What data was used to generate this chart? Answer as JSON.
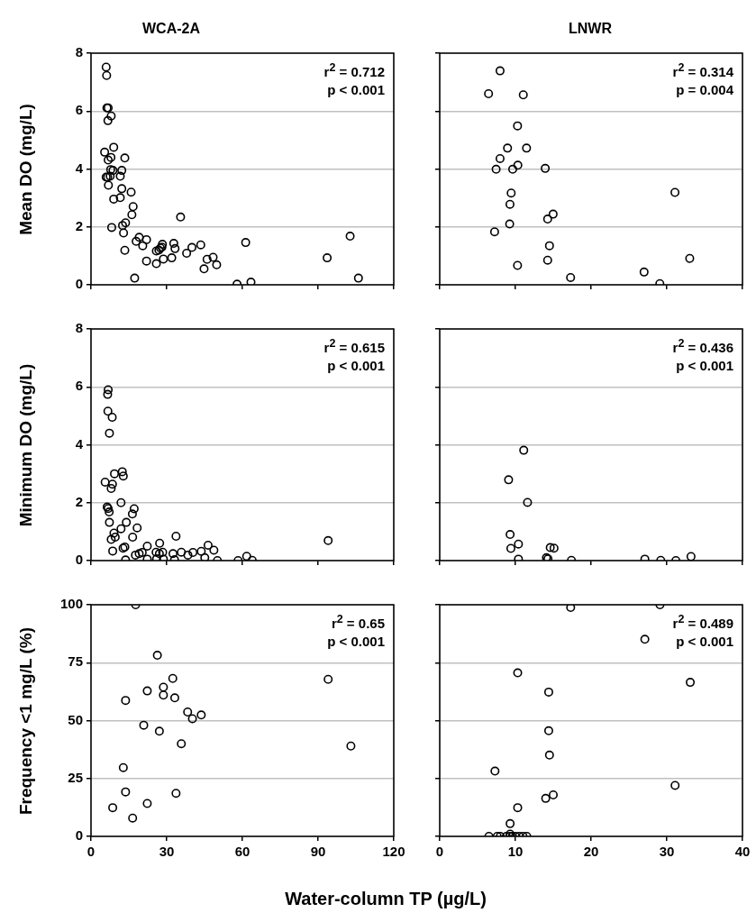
{
  "chart_data": [
    {
      "type": "scatter",
      "title": "WCA-2A",
      "ylabel": "Mean DO (mg/L)",
      "color": "#000000",
      "marker": "circle",
      "grid": "y",
      "tick_labels": "y",
      "xlim": [
        0,
        120
      ],
      "xticks": [
        0,
        30,
        60,
        90,
        120
      ],
      "ylim": [
        0,
        8
      ],
      "yticks": [
        0,
        2,
        4,
        6,
        8
      ],
      "annotations": [
        "r$^{2}$ = 0.712",
        "p < 0.001"
      ],
      "x": [
        6.0,
        6.2,
        6.3,
        6.8,
        8.0,
        6.7,
        5.4,
        9.0,
        7.9,
        6.8,
        13.4,
        7.8,
        8.7,
        12.2,
        6.0,
        6.6,
        7.6,
        11.6,
        6.9,
        12.2,
        9.0,
        11.6,
        15.9,
        16.7,
        16.2,
        8.2,
        12.5,
        13.7,
        12.9,
        35.5,
        19.1,
        17.9,
        22.0,
        20.5,
        13.4,
        17.3,
        22.0,
        25.9,
        26.9,
        27.5,
        28.3,
        28.1,
        25.9,
        28.7,
        32.8,
        33.3,
        32.0,
        37.9,
        40.0,
        43.5,
        44.8,
        46.0,
        48.4,
        49.8,
        57.9,
        61.3,
        63.4,
        93.6,
        102.7,
        106.0
      ],
      "values": [
        7.52,
        7.23,
        6.11,
        6.11,
        5.83,
        5.67,
        4.58,
        4.75,
        4.4,
        4.31,
        4.38,
        3.98,
        3.95,
        3.95,
        3.72,
        3.72,
        3.75,
        3.75,
        3.44,
        3.32,
        2.96,
        3.01,
        3.2,
        2.7,
        2.42,
        1.98,
        2.05,
        2.14,
        1.79,
        2.34,
        1.64,
        1.5,
        1.56,
        1.35,
        1.19,
        0.23,
        0.82,
        1.17,
        1.2,
        1.27,
        1.4,
        1.3,
        0.73,
        0.89,
        1.43,
        1.25,
        0.93,
        1.09,
        1.29,
        1.38,
        0.55,
        0.88,
        0.95,
        0.69,
        0.02,
        1.46,
        0.09,
        0.93,
        1.68,
        0.23
      ]
    },
    {
      "type": "scatter",
      "title": "LNWR",
      "color": "#000000",
      "marker": "circle",
      "grid": "y",
      "tick_labels": false,
      "xlim": [
        0,
        40
      ],
      "xticks": [
        0,
        10,
        20,
        30,
        40
      ],
      "ylim": [
        0,
        8
      ],
      "yticks": [
        0,
        2,
        4,
        6,
        8
      ],
      "annotations": [
        "r$^{2}$ = 0.314",
        "p = 0.004"
      ],
      "x": [
        7.97,
        6.45,
        11.04,
        10.28,
        8.96,
        11.47,
        7.97,
        7.45,
        9.64,
        10.32,
        13.94,
        9.44,
        9.28,
        14.26,
        14.98,
        9.24,
        7.25,
        31.08,
        14.5,
        14.26,
        10.28,
        17.29,
        27.0,
        29.08,
        33.03
      ],
      "values": [
        7.39,
        6.6,
        6.56,
        5.49,
        4.72,
        4.72,
        4.36,
        3.99,
        3.99,
        4.13,
        4.02,
        3.17,
        2.78,
        2.27,
        2.44,
        2.1,
        1.83,
        3.19,
        1.35,
        0.85,
        0.67,
        0.25,
        0.44,
        0.04,
        0.91
      ]
    },
    {
      "type": "scatter",
      "ylabel": "Minimum DO (mg/L)",
      "color": "#000000",
      "marker": "circle",
      "grid": "y",
      "tick_labels": "y",
      "xlim": [
        0,
        120
      ],
      "xticks": [
        0,
        30,
        60,
        90,
        120
      ],
      "ylim": [
        0,
        8
      ],
      "yticks": [
        0,
        2,
        4,
        6,
        8
      ],
      "annotations": [
        "r$^{2}$ = 0.615",
        "p < 0.001"
      ],
      "x": [
        6.8,
        6.6,
        6.7,
        8.4,
        7.3,
        5.6,
        9.3,
        12.4,
        12.8,
        8.5,
        8.0,
        6.4,
        6.8,
        7.2,
        11.9,
        17.1,
        16.4,
        7.3,
        14.0,
        11.9,
        18.3,
        9.1,
        9.6,
        8.0,
        16.5,
        12.7,
        13.4,
        8.6,
        13.7,
        17.6,
        19.1,
        20.3,
        22.3,
        22.3,
        25.8,
        27.2,
        27.1,
        28.4,
        26.0,
        28.7,
        33.7,
        32.5,
        33.1,
        35.8,
        38.4,
        40.4,
        43.7,
        46.4,
        45.1,
        48.7,
        50.1,
        58.3,
        61.7,
        63.9,
        94.0
      ],
      "values": [
        5.9,
        5.74,
        5.16,
        4.95,
        4.4,
        2.71,
        3.0,
        3.07,
        2.92,
        2.64,
        2.49,
        1.85,
        1.8,
        1.68,
        2.0,
        1.79,
        1.61,
        1.32,
        1.32,
        1.1,
        1.13,
        0.95,
        0.81,
        0.73,
        0.81,
        0.43,
        0.47,
        0.33,
        0.02,
        0.19,
        0.24,
        0.28,
        0.5,
        0.05,
        0.29,
        0.6,
        0.24,
        0.29,
        0.06,
        0.05,
        0.84,
        0.24,
        0.03,
        0.29,
        0.19,
        0.28,
        0.32,
        0.53,
        0.1,
        0.36,
        0.0,
        0.0,
        0.15,
        0.01,
        0.69
      ]
    },
    {
      "type": "scatter",
      "color": "#000000",
      "marker": "circle",
      "grid": "y",
      "tick_labels": false,
      "xlim": [
        0,
        40
      ],
      "xticks": [
        0,
        10,
        20,
        30,
        40
      ],
      "ylim": [
        0,
        8
      ],
      "yticks": [
        0,
        2,
        4,
        6,
        8
      ],
      "annotations": [
        "r$^{2}$ = 0.436",
        "p < 0.001"
      ],
      "x": [
        11.1,
        9.1,
        11.6,
        9.3,
        10.4,
        9.4,
        10.4,
        14.1,
        14.3,
        14.6,
        15.1,
        17.4,
        27.1,
        29.2,
        31.2,
        33.2
      ],
      "values": [
        3.81,
        2.79,
        2.01,
        0.9,
        0.57,
        0.42,
        0.05,
        0.1,
        0.06,
        0.45,
        0.43,
        0.01,
        0.05,
        0.01,
        0.0,
        0.14
      ]
    },
    {
      "type": "scatter",
      "ylabel": "Frequency <1 mg/L (%)",
      "xlabel": "Water-column TP (µg/L)",
      "color": "#000000",
      "marker": "circle",
      "grid": "y",
      "xlim": [
        0,
        120
      ],
      "xticks": [
        0,
        30,
        60,
        90,
        120
      ],
      "ylim": [
        0,
        100
      ],
      "yticks": [
        0,
        25,
        50,
        75,
        100
      ],
      "annotations": [
        "r$^{2}$ = 0.65",
        "p < 0.001"
      ],
      "x": [
        17.7,
        26.3,
        32.4,
        94.0,
        28.7,
        22.3,
        28.7,
        33.2,
        13.7,
        38.3,
        43.7,
        40.2,
        20.9,
        27.1,
        35.8,
        103.0,
        12.8,
        13.7,
        33.7,
        22.3,
        8.6,
        16.5
      ],
      "values": [
        100,
        78.2,
        68.2,
        67.8,
        64.4,
        62.8,
        61.0,
        59.8,
        58.7,
        53.7,
        52.4,
        50.8,
        48.0,
        45.4,
        40.0,
        39.0,
        29.7,
        19.2,
        18.6,
        14.2,
        12.4,
        7.9
      ]
    },
    {
      "type": "scatter",
      "color": "#000000",
      "marker": "circle",
      "grid": "y",
      "tick_labels": "x",
      "xlim": [
        0,
        40
      ],
      "xticks": [
        0,
        10,
        20,
        30,
        40
      ],
      "ylim": [
        0,
        100
      ],
      "yticks": [
        0,
        25,
        50,
        75,
        100
      ],
      "annotations": [
        "r$^{2}$ = 0.489",
        "p < 0.001"
      ],
      "x": [
        17.3,
        29.1,
        27.1,
        10.3,
        33.1,
        14.4,
        14.4,
        14.5,
        7.3,
        31.1,
        15.0,
        14.0,
        10.3,
        9.3,
        9.3,
        6.5,
        7.6,
        8.0,
        8.8,
        9.3,
        9.6,
        10.0,
        10.5,
        11.0,
        11.5
      ],
      "values": [
        98.8,
        100,
        85.1,
        70.6,
        66.5,
        62.3,
        45.6,
        35.1,
        28.2,
        22.0,
        17.9,
        16.4,
        12.4,
        5.5,
        1.0,
        0,
        0,
        0,
        0,
        0,
        0,
        0,
        0,
        0,
        0
      ]
    }
  ]
}
